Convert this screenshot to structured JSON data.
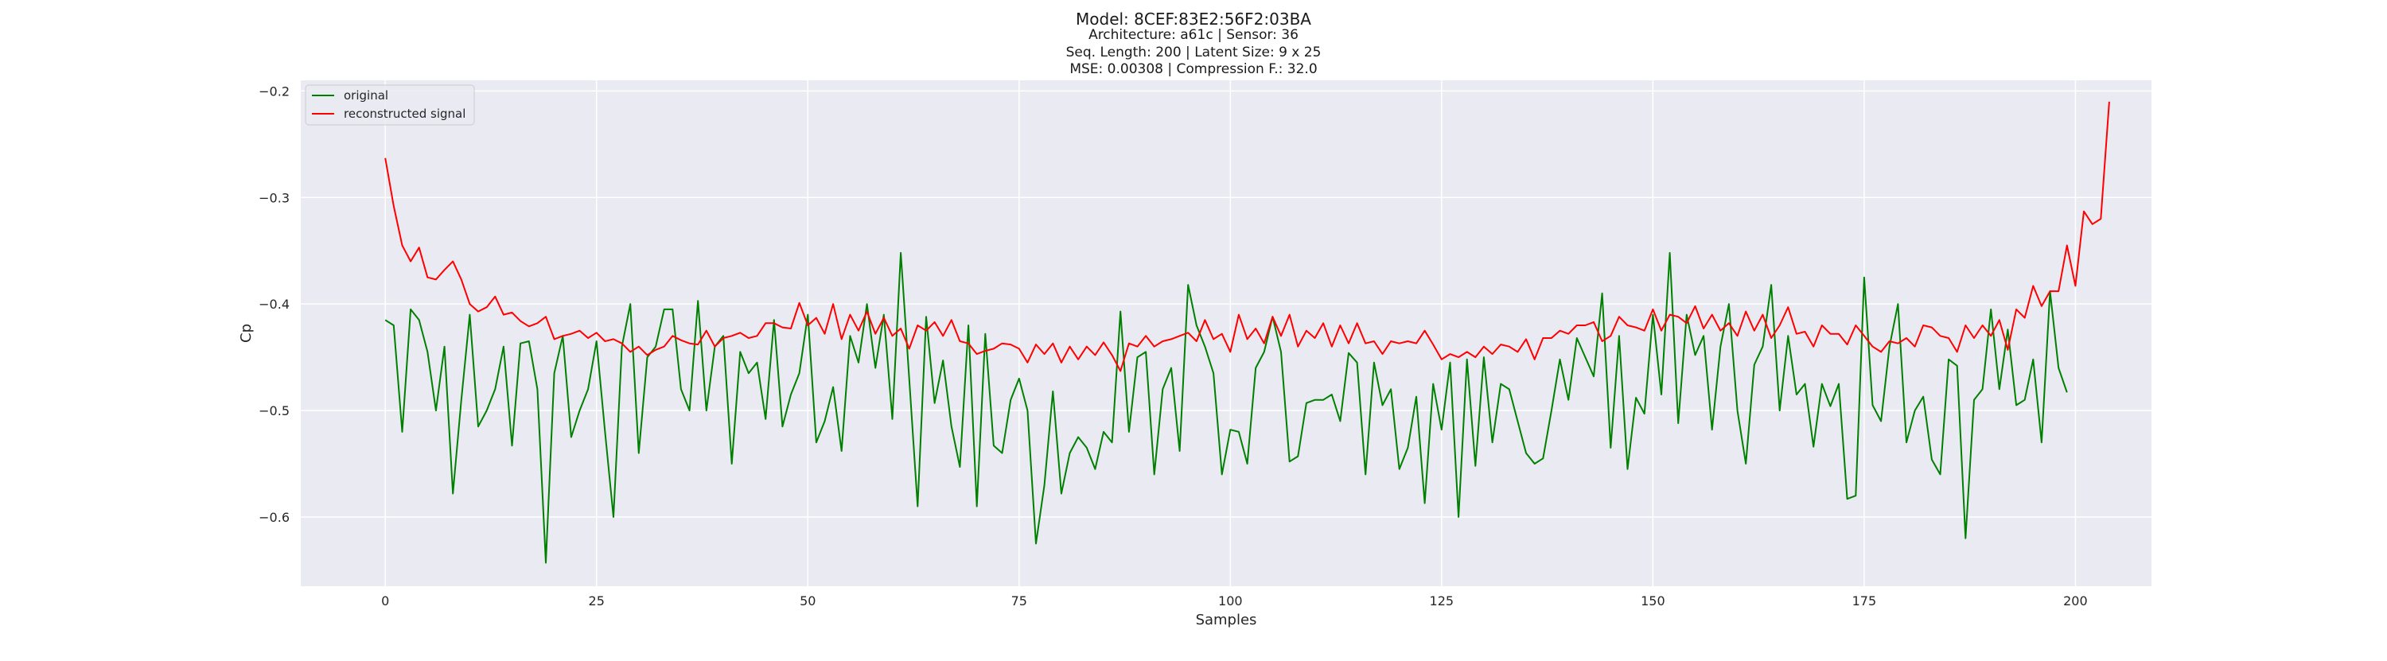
{
  "chart_data": {
    "type": "line",
    "title": "Model: 8CEF:83E2:56F2:03BA",
    "subtitle_lines": [
      "Architecture: a61c | Sensor: 36",
      "Seq. Length: 200 | Latent Size: 9 x 25",
      "MSE: 0.00308 | Compression F.: 32.0"
    ],
    "xlabel": "Samples",
    "ylabel": "Cp",
    "xlim": [
      -10,
      209
    ],
    "ylim": [
      -0.665,
      -0.19
    ],
    "xticks": [
      0,
      25,
      50,
      75,
      100,
      125,
      150,
      175,
      200
    ],
    "yticks": [
      -0.6,
      -0.5,
      -0.4,
      -0.3,
      -0.2
    ],
    "xtick_labels": [
      "0",
      "25",
      "50",
      "75",
      "100",
      "125",
      "150",
      "175",
      "200"
    ],
    "ytick_labels": [
      "−0.6",
      "−0.5",
      "−0.4",
      "−0.3",
      "−0.2"
    ],
    "grid": true,
    "legend_position": "top-left",
    "background": "#eaeaf2",
    "series": [
      {
        "name": "original",
        "color": "#008000",
        "values": [
          -0.415,
          -0.42,
          -0.52,
          -0.405,
          -0.415,
          -0.445,
          -0.5,
          -0.44,
          -0.578,
          -0.49,
          -0.41,
          -0.515,
          -0.5,
          -0.48,
          -0.44,
          -0.533,
          -0.437,
          -0.435,
          -0.48,
          -0.643,
          -0.465,
          -0.43,
          -0.525,
          -0.5,
          -0.48,
          -0.435,
          -0.52,
          -0.6,
          -0.44,
          -0.4,
          -0.54,
          -0.45,
          -0.44,
          -0.405,
          -0.405,
          -0.48,
          -0.5,
          -0.397,
          -0.5,
          -0.44,
          -0.43,
          -0.55,
          -0.445,
          -0.465,
          -0.455,
          -0.508,
          -0.415,
          -0.515,
          -0.485,
          -0.465,
          -0.41,
          -0.53,
          -0.51,
          -0.478,
          -0.538,
          -0.43,
          -0.455,
          -0.4,
          -0.46,
          -0.41,
          -0.508,
          -0.352,
          -0.47,
          -0.59,
          -0.412,
          -0.493,
          -0.453,
          -0.515,
          -0.553,
          -0.42,
          -0.59,
          -0.428,
          -0.533,
          -0.54,
          -0.49,
          -0.47,
          -0.5,
          -0.625,
          -0.57,
          -0.482,
          -0.578,
          -0.54,
          -0.525,
          -0.535,
          -0.555,
          -0.52,
          -0.53,
          -0.407,
          -0.52,
          -0.45,
          -0.445,
          -0.56,
          -0.48,
          -0.46,
          -0.538,
          -0.382,
          -0.42,
          -0.44,
          -0.465,
          -0.56,
          -0.518,
          -0.52,
          -0.55,
          -0.46,
          -0.445,
          -0.412,
          -0.445,
          -0.548,
          -0.543,
          -0.493,
          -0.49,
          -0.49,
          -0.485,
          -0.51,
          -0.446,
          -0.455,
          -0.56,
          -0.455,
          -0.495,
          -0.48,
          -0.555,
          -0.535,
          -0.487,
          -0.587,
          -0.475,
          -0.518,
          -0.455,
          -0.6,
          -0.452,
          -0.552,
          -0.45,
          -0.53,
          -0.475,
          -0.48,
          -0.51,
          -0.54,
          -0.55,
          -0.545,
          -0.5,
          -0.452,
          -0.49,
          -0.432,
          -0.45,
          -0.468,
          -0.39,
          -0.535,
          -0.43,
          -0.555,
          -0.488,
          -0.503,
          -0.41,
          -0.485,
          -0.352,
          -0.512,
          -0.41,
          -0.448,
          -0.43,
          -0.518,
          -0.44,
          -0.4,
          -0.5,
          -0.55,
          -0.457,
          -0.44,
          -0.382,
          -0.5,
          -0.43,
          -0.485,
          -0.475,
          -0.534,
          -0.475,
          -0.496,
          -0.475,
          -0.583,
          -0.58,
          -0.375,
          -0.495,
          -0.51,
          -0.44,
          -0.4,
          -0.53,
          -0.5,
          -0.487,
          -0.546,
          -0.56,
          -0.452,
          -0.458,
          -0.62,
          -0.49,
          -0.48,
          -0.405,
          -0.48,
          -0.424,
          -0.495,
          -0.49,
          -0.452,
          -0.53,
          -0.388,
          -0.46,
          -0.483
        ]
      },
      {
        "name": "reconstructed signal",
        "color": "#ff0000",
        "values": [
          -0.263,
          -0.308,
          -0.345,
          -0.36,
          -0.347,
          -0.375,
          -0.377,
          -0.368,
          -0.36,
          -0.377,
          -0.4,
          -0.407,
          -0.403,
          -0.393,
          -0.41,
          -0.408,
          -0.416,
          -0.421,
          -0.418,
          -0.412,
          -0.433,
          -0.43,
          -0.428,
          -0.425,
          -0.432,
          -0.427,
          -0.435,
          -0.433,
          -0.437,
          -0.445,
          -0.44,
          -0.448,
          -0.443,
          -0.44,
          -0.43,
          -0.434,
          -0.437,
          -0.438,
          -0.425,
          -0.44,
          -0.432,
          -0.43,
          -0.427,
          -0.432,
          -0.43,
          -0.418,
          -0.418,
          -0.422,
          -0.423,
          -0.399,
          -0.42,
          -0.413,
          -0.428,
          -0.4,
          -0.433,
          -0.41,
          -0.425,
          -0.407,
          -0.428,
          -0.413,
          -0.43,
          -0.423,
          -0.442,
          -0.42,
          -0.425,
          -0.417,
          -0.43,
          -0.415,
          -0.435,
          -0.437,
          -0.447,
          -0.444,
          -0.442,
          -0.437,
          -0.438,
          -0.442,
          -0.455,
          -0.438,
          -0.447,
          -0.437,
          -0.455,
          -0.44,
          -0.452,
          -0.44,
          -0.448,
          -0.436,
          -0.448,
          -0.463,
          -0.437,
          -0.44,
          -0.43,
          -0.44,
          -0.435,
          -0.433,
          -0.43,
          -0.427,
          -0.435,
          -0.415,
          -0.433,
          -0.428,
          -0.445,
          -0.41,
          -0.433,
          -0.423,
          -0.437,
          -0.412,
          -0.43,
          -0.41,
          -0.44,
          -0.425,
          -0.432,
          -0.418,
          -0.44,
          -0.42,
          -0.437,
          -0.418,
          -0.437,
          -0.435,
          -0.447,
          -0.435,
          -0.437,
          -0.435,
          -0.437,
          -0.425,
          -0.438,
          -0.452,
          -0.447,
          -0.45,
          -0.445,
          -0.45,
          -0.44,
          -0.447,
          -0.438,
          -0.44,
          -0.445,
          -0.433,
          -0.452,
          -0.432,
          -0.432,
          -0.425,
          -0.428,
          -0.42,
          -0.42,
          -0.417,
          -0.435,
          -0.43,
          -0.412,
          -0.42,
          -0.422,
          -0.425,
          -0.405,
          -0.425,
          -0.41,
          -0.412,
          -0.418,
          -0.402,
          -0.423,
          -0.41,
          -0.425,
          -0.418,
          -0.43,
          -0.407,
          -0.425,
          -0.41,
          -0.432,
          -0.42,
          -0.403,
          -0.428,
          -0.426,
          -0.44,
          -0.42,
          -0.428,
          -0.428,
          -0.438,
          -0.42,
          -0.43,
          -0.44,
          -0.445,
          -0.435,
          -0.437,
          -0.432,
          -0.44,
          -0.42,
          -0.422,
          -0.43,
          -0.432,
          -0.445,
          -0.42,
          -0.432,
          -0.42,
          -0.43,
          -0.415,
          -0.443,
          -0.405,
          -0.413,
          -0.383,
          -0.402,
          -0.388,
          -0.388,
          -0.345,
          -0.383,
          -0.313,
          -0.325,
          -0.32,
          -0.21
        ]
      }
    ]
  }
}
